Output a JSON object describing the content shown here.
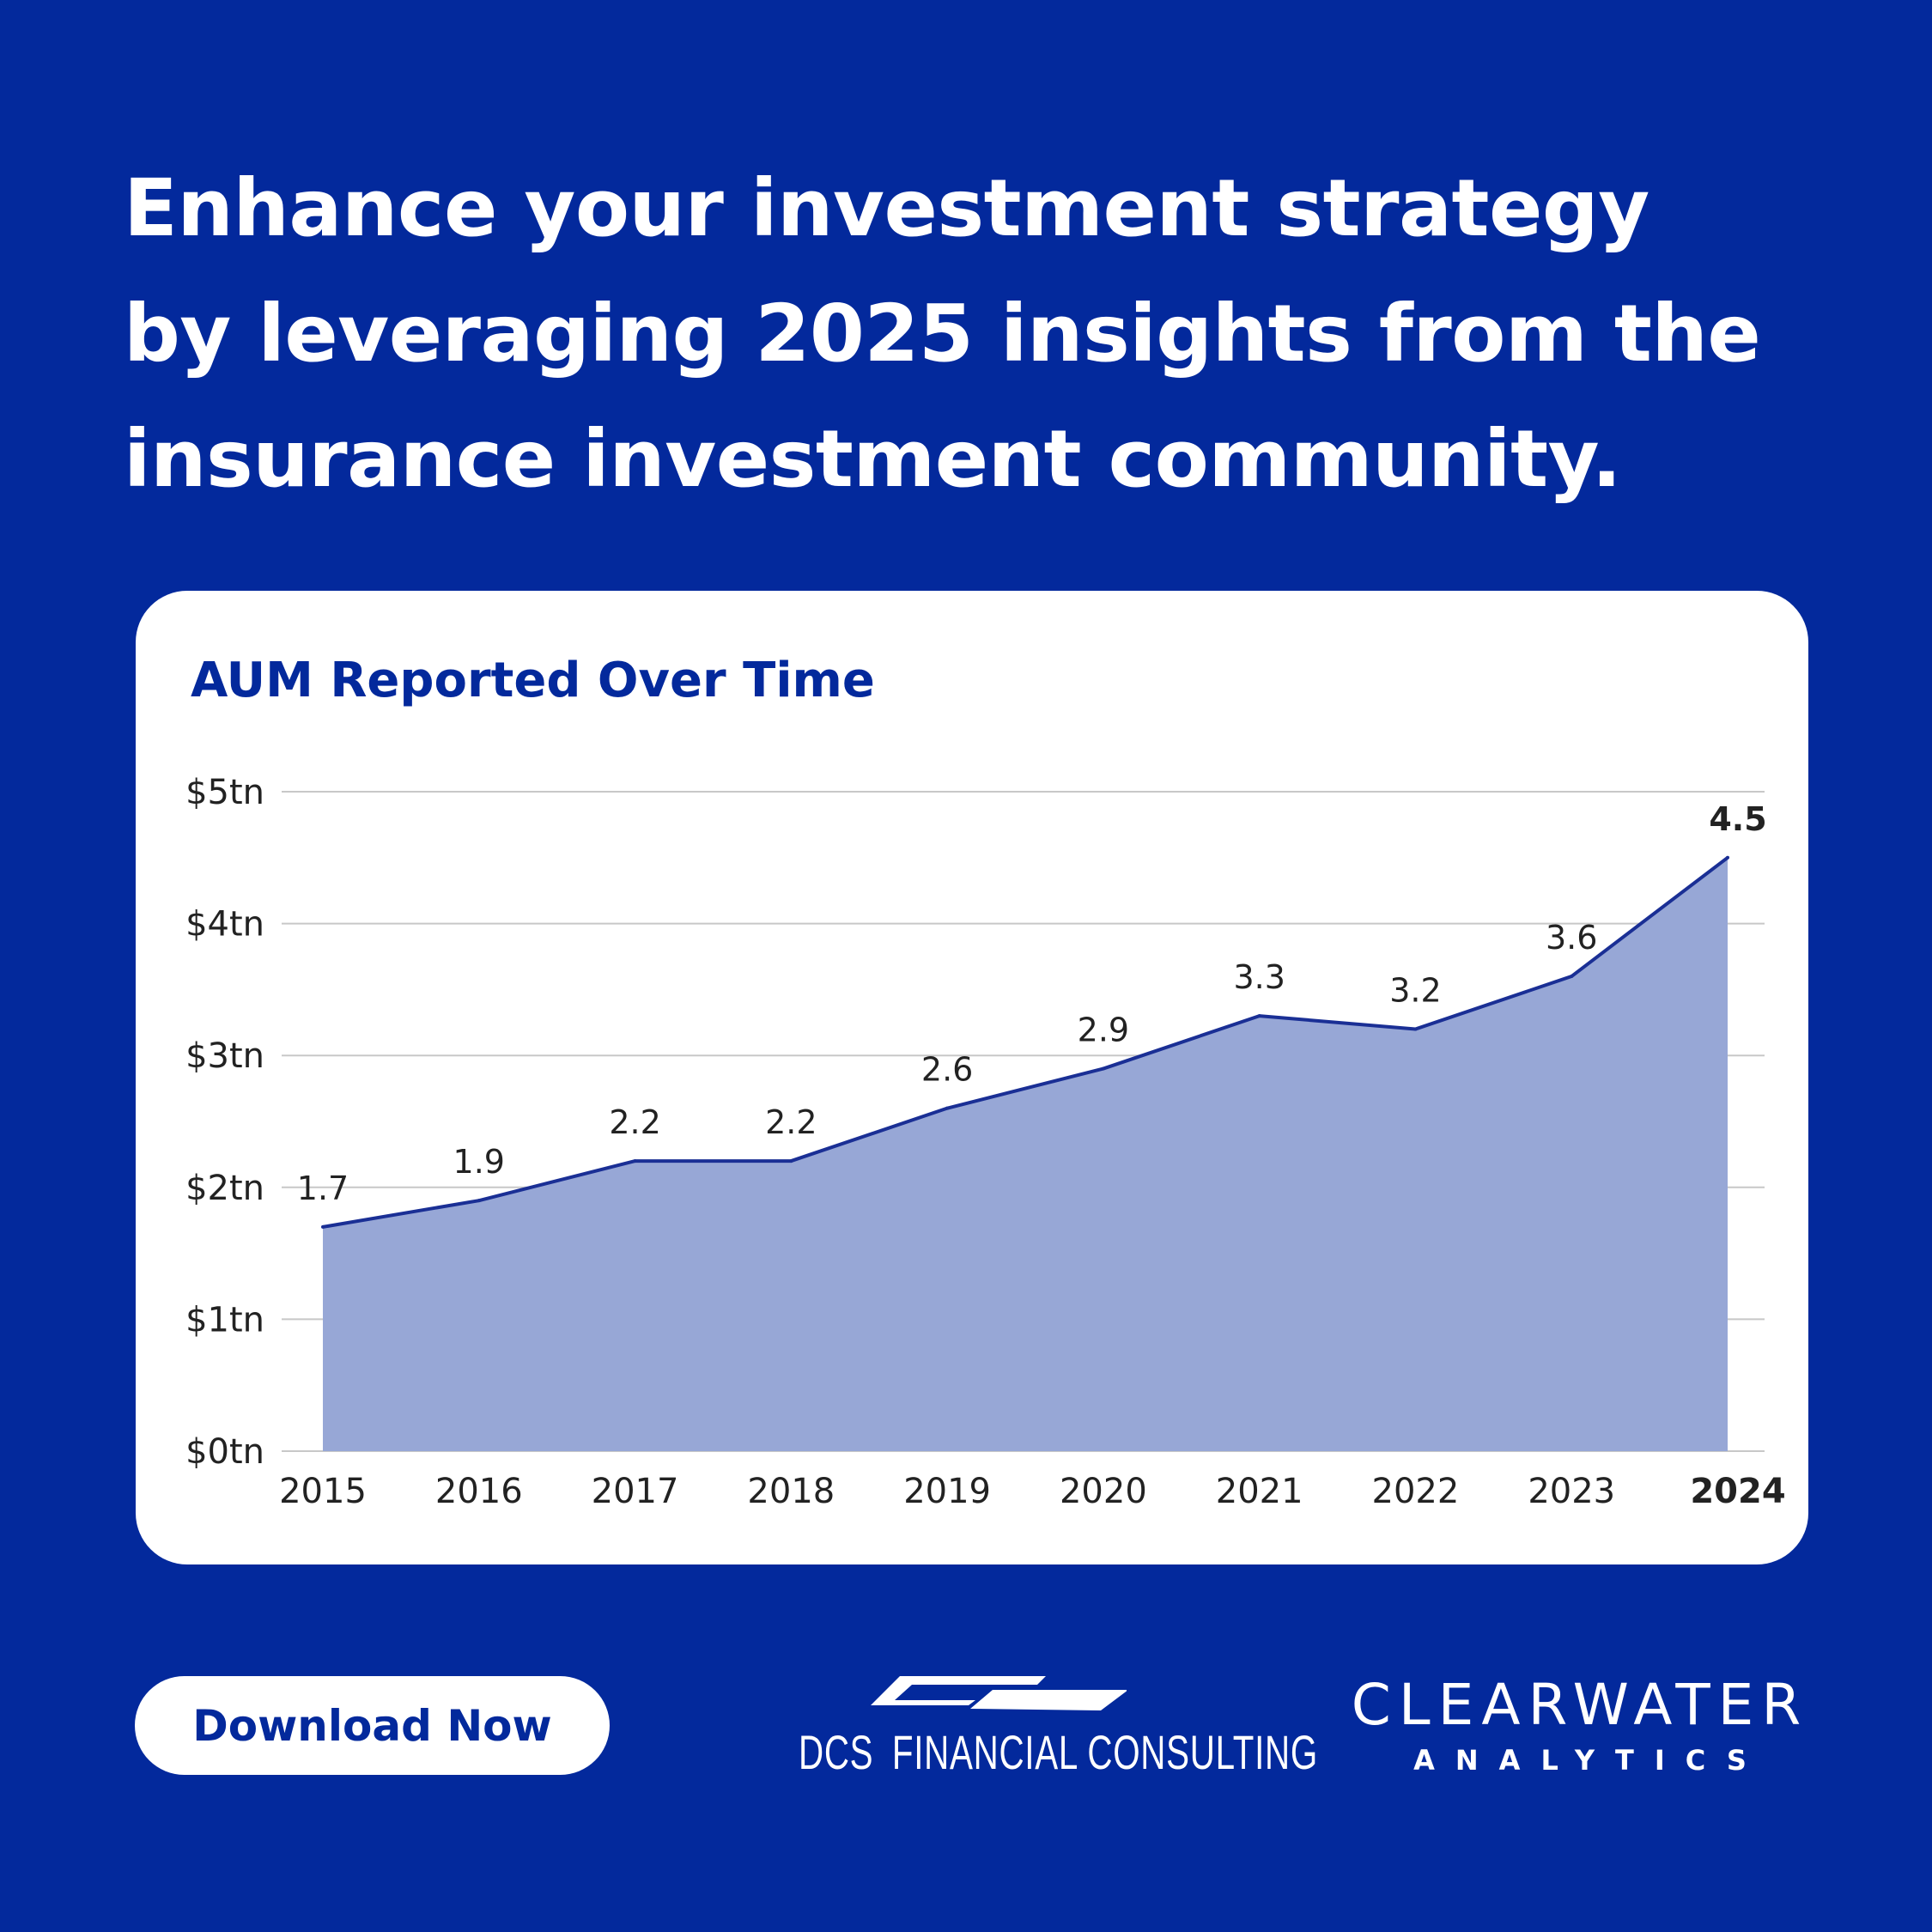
{
  "headline": {
    "line1": "Enhance your investment strategy",
    "line2": "by leveraging 2025 insights from the",
    "line3": "insurance investment community."
  },
  "chart_data": {
    "type": "area",
    "title": "AUM Reported Over Time",
    "xlabel": "",
    "ylabel": "",
    "categories": [
      "2015",
      "2016",
      "2017",
      "2018",
      "2019",
      "2020",
      "2021",
      "2022",
      "2023",
      "2024"
    ],
    "values": [
      1.7,
      1.9,
      2.2,
      2.2,
      2.6,
      2.9,
      3.3,
      3.2,
      3.6,
      4.5
    ],
    "value_labels": [
      "1.7",
      "1.9",
      "2.2",
      "2.2",
      "2.6",
      "2.9",
      "3.3",
      "3.2",
      "3.6",
      "4.5"
    ],
    "ylim": [
      0,
      5
    ],
    "yticks": [
      0,
      1,
      2,
      3,
      4,
      5
    ],
    "ytick_labels": [
      "$0tn",
      "$1tn",
      "$2tn",
      "$3tn",
      "$4tn",
      "$5tn"
    ],
    "highlight_category": "2024",
    "grid": true,
    "colors": {
      "line": "#1a2f95",
      "fill": "#97a7d6",
      "grid": "#c8c8c8"
    }
  },
  "cta": {
    "download_label": "Download Now"
  },
  "logos": {
    "dcs": {
      "abbr": "DCS",
      "name": "FINANCIAL CONSULTING"
    },
    "clearwater": {
      "main": "CLEARWATER",
      "sub": "ANALYTICS"
    }
  },
  "colors": {
    "background": "#03299c",
    "card": "#ffffff",
    "accent": "#03299c"
  }
}
